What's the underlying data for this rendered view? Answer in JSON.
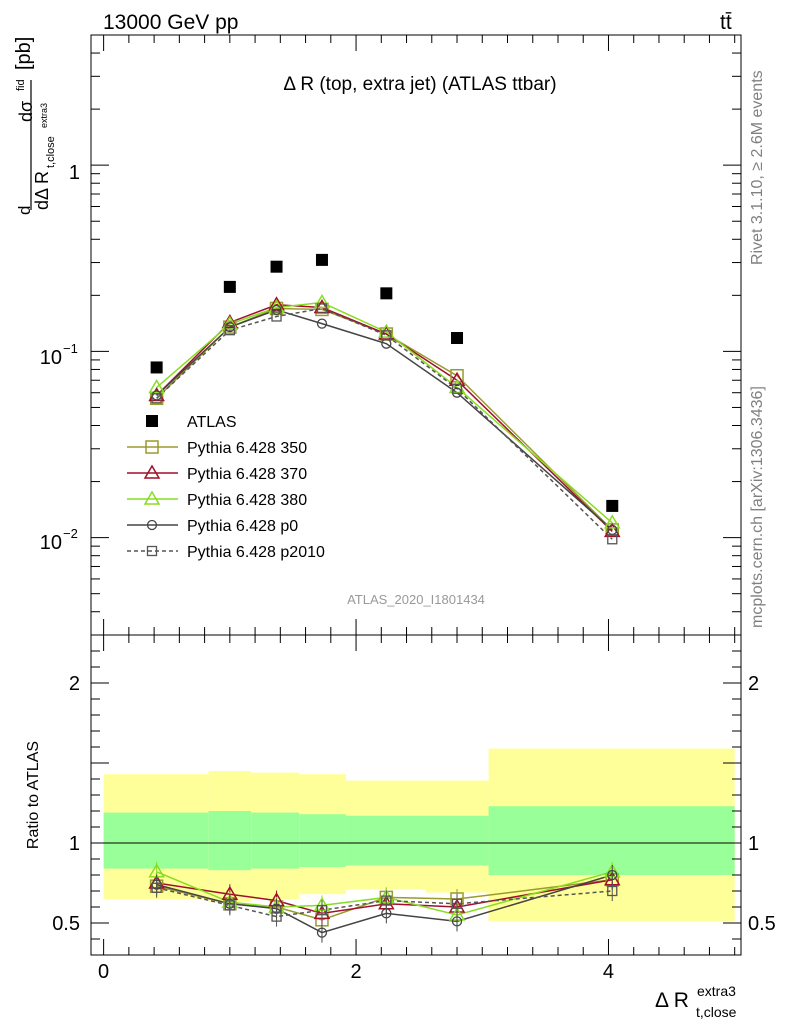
{
  "header": {
    "left": "13000 GeV pp",
    "right": "tt̄"
  },
  "side_labels": {
    "top": "Rivet 3.1.10, ≥ 2.6M events",
    "bottom": "mcplots.cern.ch [arXiv:1306.3436]"
  },
  "colors": {
    "atlas": "#000000",
    "p350": "#9a9a2e",
    "p370": "#a0102a",
    "p380": "#88dd22",
    "p0": "#444444",
    "p2010": "#555555",
    "band_yellow": "#ffff99",
    "band_green": "#99ff99"
  },
  "chart_data": [
    {
      "type": "line",
      "title": "Δ R (top, extra jet) (ATLAS ttbar)",
      "analysis_label": "ATLAS_2020_I1801434",
      "ylabel": "dσ^fid / dΔ R_t,close^extra3 [pb]",
      "yscale": "log",
      "ylim": [
        0.003,
        5
      ],
      "xlim": [
        -0.1,
        5.05
      ],
      "ytick_labels": {
        "major1": "1",
        "major01": "10",
        "major001": "10"
      },
      "x": [
        0.42,
        1.0,
        1.37,
        1.73,
        2.24,
        2.8,
        4.03
      ],
      "series": [
        {
          "name": "ATLAS",
          "values": [
            0.082,
            0.222,
            0.285,
            0.31,
            0.205,
            0.118,
            0.0148
          ]
        },
        {
          "name": "Pythia 6.428 350",
          "values": [
            0.056,
            0.135,
            0.17,
            0.168,
            0.124,
            0.074,
            0.011
          ]
        },
        {
          "name": "Pythia 6.428 370",
          "values": [
            0.058,
            0.143,
            0.178,
            0.172,
            0.124,
            0.07,
            0.0108
          ]
        },
        {
          "name": "Pythia 6.428 380",
          "values": [
            0.064,
            0.14,
            0.172,
            0.183,
            0.127,
            0.064,
            0.012
          ]
        },
        {
          "name": "Pythia 6.428 p0",
          "values": [
            0.058,
            0.135,
            0.167,
            0.141,
            0.11,
            0.06,
            0.011
          ]
        },
        {
          "name": "Pythia 6.428 p2010",
          "values": [
            0.056,
            0.13,
            0.154,
            0.17,
            0.122,
            0.063,
            0.0098
          ]
        }
      ]
    },
    {
      "type": "line",
      "xlabel": "Δ R_t,close^extra3",
      "ylabel": "Ratio to ATLAS",
      "ylim": [
        0.3,
        2.3
      ],
      "xlim": [
        -0.1,
        5.05
      ],
      "yticks": [
        0.5,
        1,
        2
      ],
      "ytick_labels": [
        "0.5",
        "1",
        "2"
      ],
      "xticks": [
        0,
        2,
        4
      ],
      "xtick_labels": [
        "0",
        "2",
        "4"
      ],
      "x": [
        0.42,
        1.0,
        1.37,
        1.73,
        2.24,
        2.8,
        4.03
      ],
      "bands": [
        {
          "x0": 0.0,
          "x1": 0.83,
          "yellow": [
            0.65,
            1.43
          ],
          "green": [
            0.84,
            1.19
          ]
        },
        {
          "x0": 0.83,
          "x1": 1.17,
          "yellow": [
            0.63,
            1.45
          ],
          "green": [
            0.83,
            1.2
          ]
        },
        {
          "x0": 1.17,
          "x1": 1.55,
          "yellow": [
            0.65,
            1.44
          ],
          "green": [
            0.84,
            1.19
          ]
        },
        {
          "x0": 1.55,
          "x1": 1.92,
          "yellow": [
            0.68,
            1.43
          ],
          "green": [
            0.85,
            1.18
          ]
        },
        {
          "x0": 1.92,
          "x1": 2.55,
          "yellow": [
            0.71,
            1.39
          ],
          "green": [
            0.86,
            1.17
          ]
        },
        {
          "x0": 2.55,
          "x1": 3.05,
          "yellow": [
            0.69,
            1.39
          ],
          "green": [
            0.86,
            1.17
          ]
        },
        {
          "x0": 3.05,
          "x1": 5.0,
          "yellow": [
            0.51,
            1.59
          ],
          "green": [
            0.8,
            1.23
          ]
        }
      ],
      "series": [
        {
          "name": "Pythia 6.428 350",
          "values": [
            0.73,
            0.62,
            0.6,
            0.52,
            0.66,
            0.65,
            0.77
          ]
        },
        {
          "name": "Pythia 6.428 370",
          "values": [
            0.75,
            0.68,
            0.64,
            0.56,
            0.62,
            0.6,
            0.77
          ]
        },
        {
          "name": "Pythia 6.428 380",
          "values": [
            0.82,
            0.63,
            0.6,
            0.61,
            0.66,
            0.55,
            0.82
          ]
        },
        {
          "name": "Pythia 6.428 p0",
          "values": [
            0.74,
            0.62,
            0.59,
            0.44,
            0.56,
            0.51,
            0.8
          ]
        },
        {
          "name": "Pythia 6.428 p2010",
          "values": [
            0.72,
            0.61,
            0.54,
            0.58,
            0.64,
            0.62,
            0.7
          ]
        }
      ]
    }
  ]
}
